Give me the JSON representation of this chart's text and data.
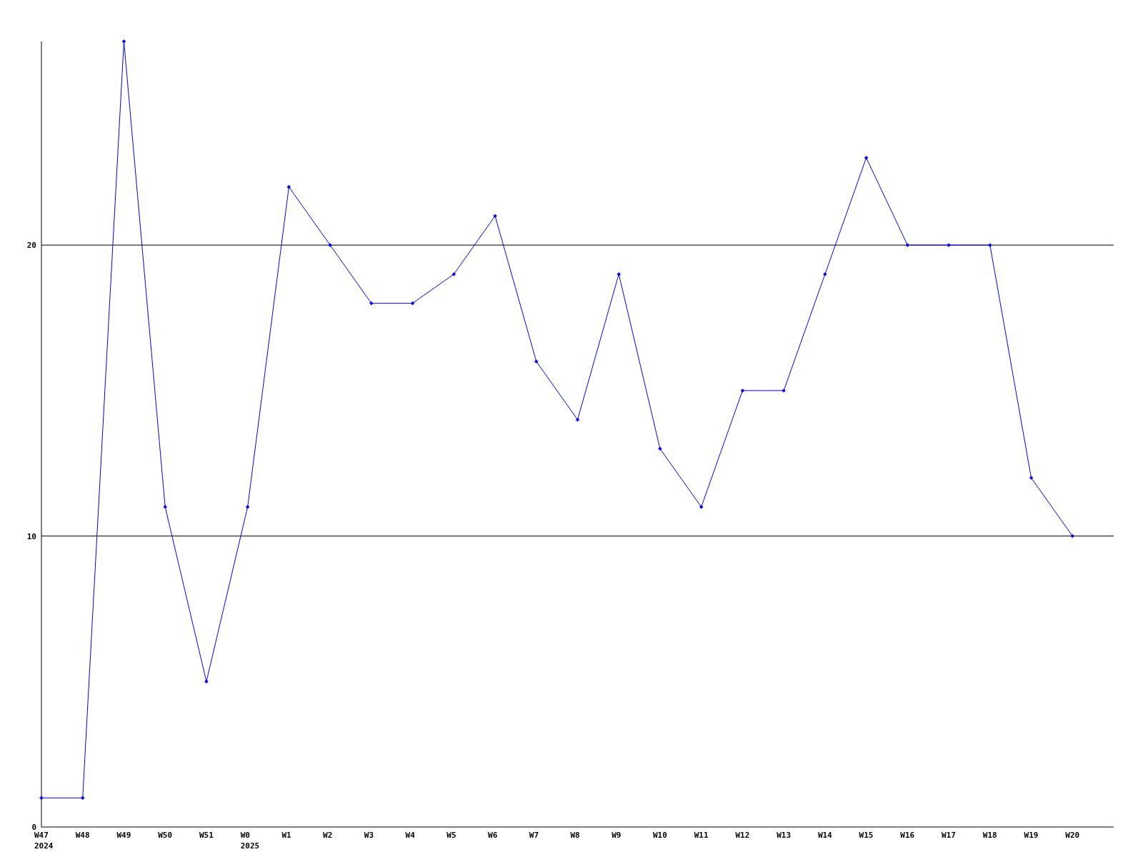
{
  "chart_data": {
    "type": "line",
    "categories": [
      "W47\n2024",
      "W48",
      "W49",
      "W50",
      "W51",
      "W0\n2025",
      "W1",
      "W2",
      "W3",
      "W4",
      "W5",
      "W6",
      "W7",
      "W8",
      "W9",
      "W10",
      "W11",
      "W12",
      "W13",
      "W14",
      "W15",
      "W16",
      "W17",
      "W18",
      "W19",
      "W20"
    ],
    "series": [
      {
        "color": "#0000ff",
        "values": [
          1,
          1,
          27,
          11,
          5,
          11,
          22,
          20,
          18,
          18,
          19,
          21,
          16,
          14,
          19,
          13,
          11,
          15,
          15,
          19,
          23,
          20,
          20,
          20,
          12,
          10
        ]
      }
    ],
    "ylim": [
      0,
      27
    ],
    "yticks": [
      0,
      10,
      20
    ],
    "grid": "y",
    "marker": "diamond",
    "line_style": "solid"
  }
}
